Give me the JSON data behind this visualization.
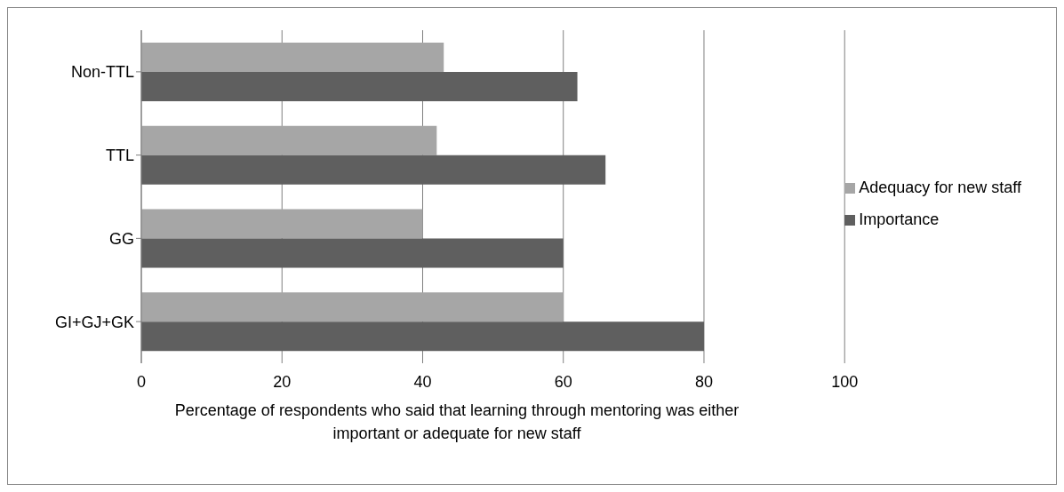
{
  "chart_data": {
    "type": "bar",
    "orientation": "horizontal",
    "categories": [
      "Non-TTL",
      "TTL",
      "GG",
      "GI+GJ+GK"
    ],
    "series": [
      {
        "name": "Adequacy for new staff",
        "color": "#a6a6a6",
        "values": [
          43,
          42,
          40,
          60
        ]
      },
      {
        "name": "Importance",
        "color": "#5f5f5f",
        "values": [
          62,
          66,
          60,
          80
        ]
      }
    ],
    "xlim": [
      0,
      100
    ],
    "xticks": [
      0,
      20,
      40,
      60,
      80,
      100
    ],
    "xlabel": "Percentage of respondents who said that learning through mentoring was either important or adequate for new staff",
    "grid": "x",
    "legend": "right"
  }
}
